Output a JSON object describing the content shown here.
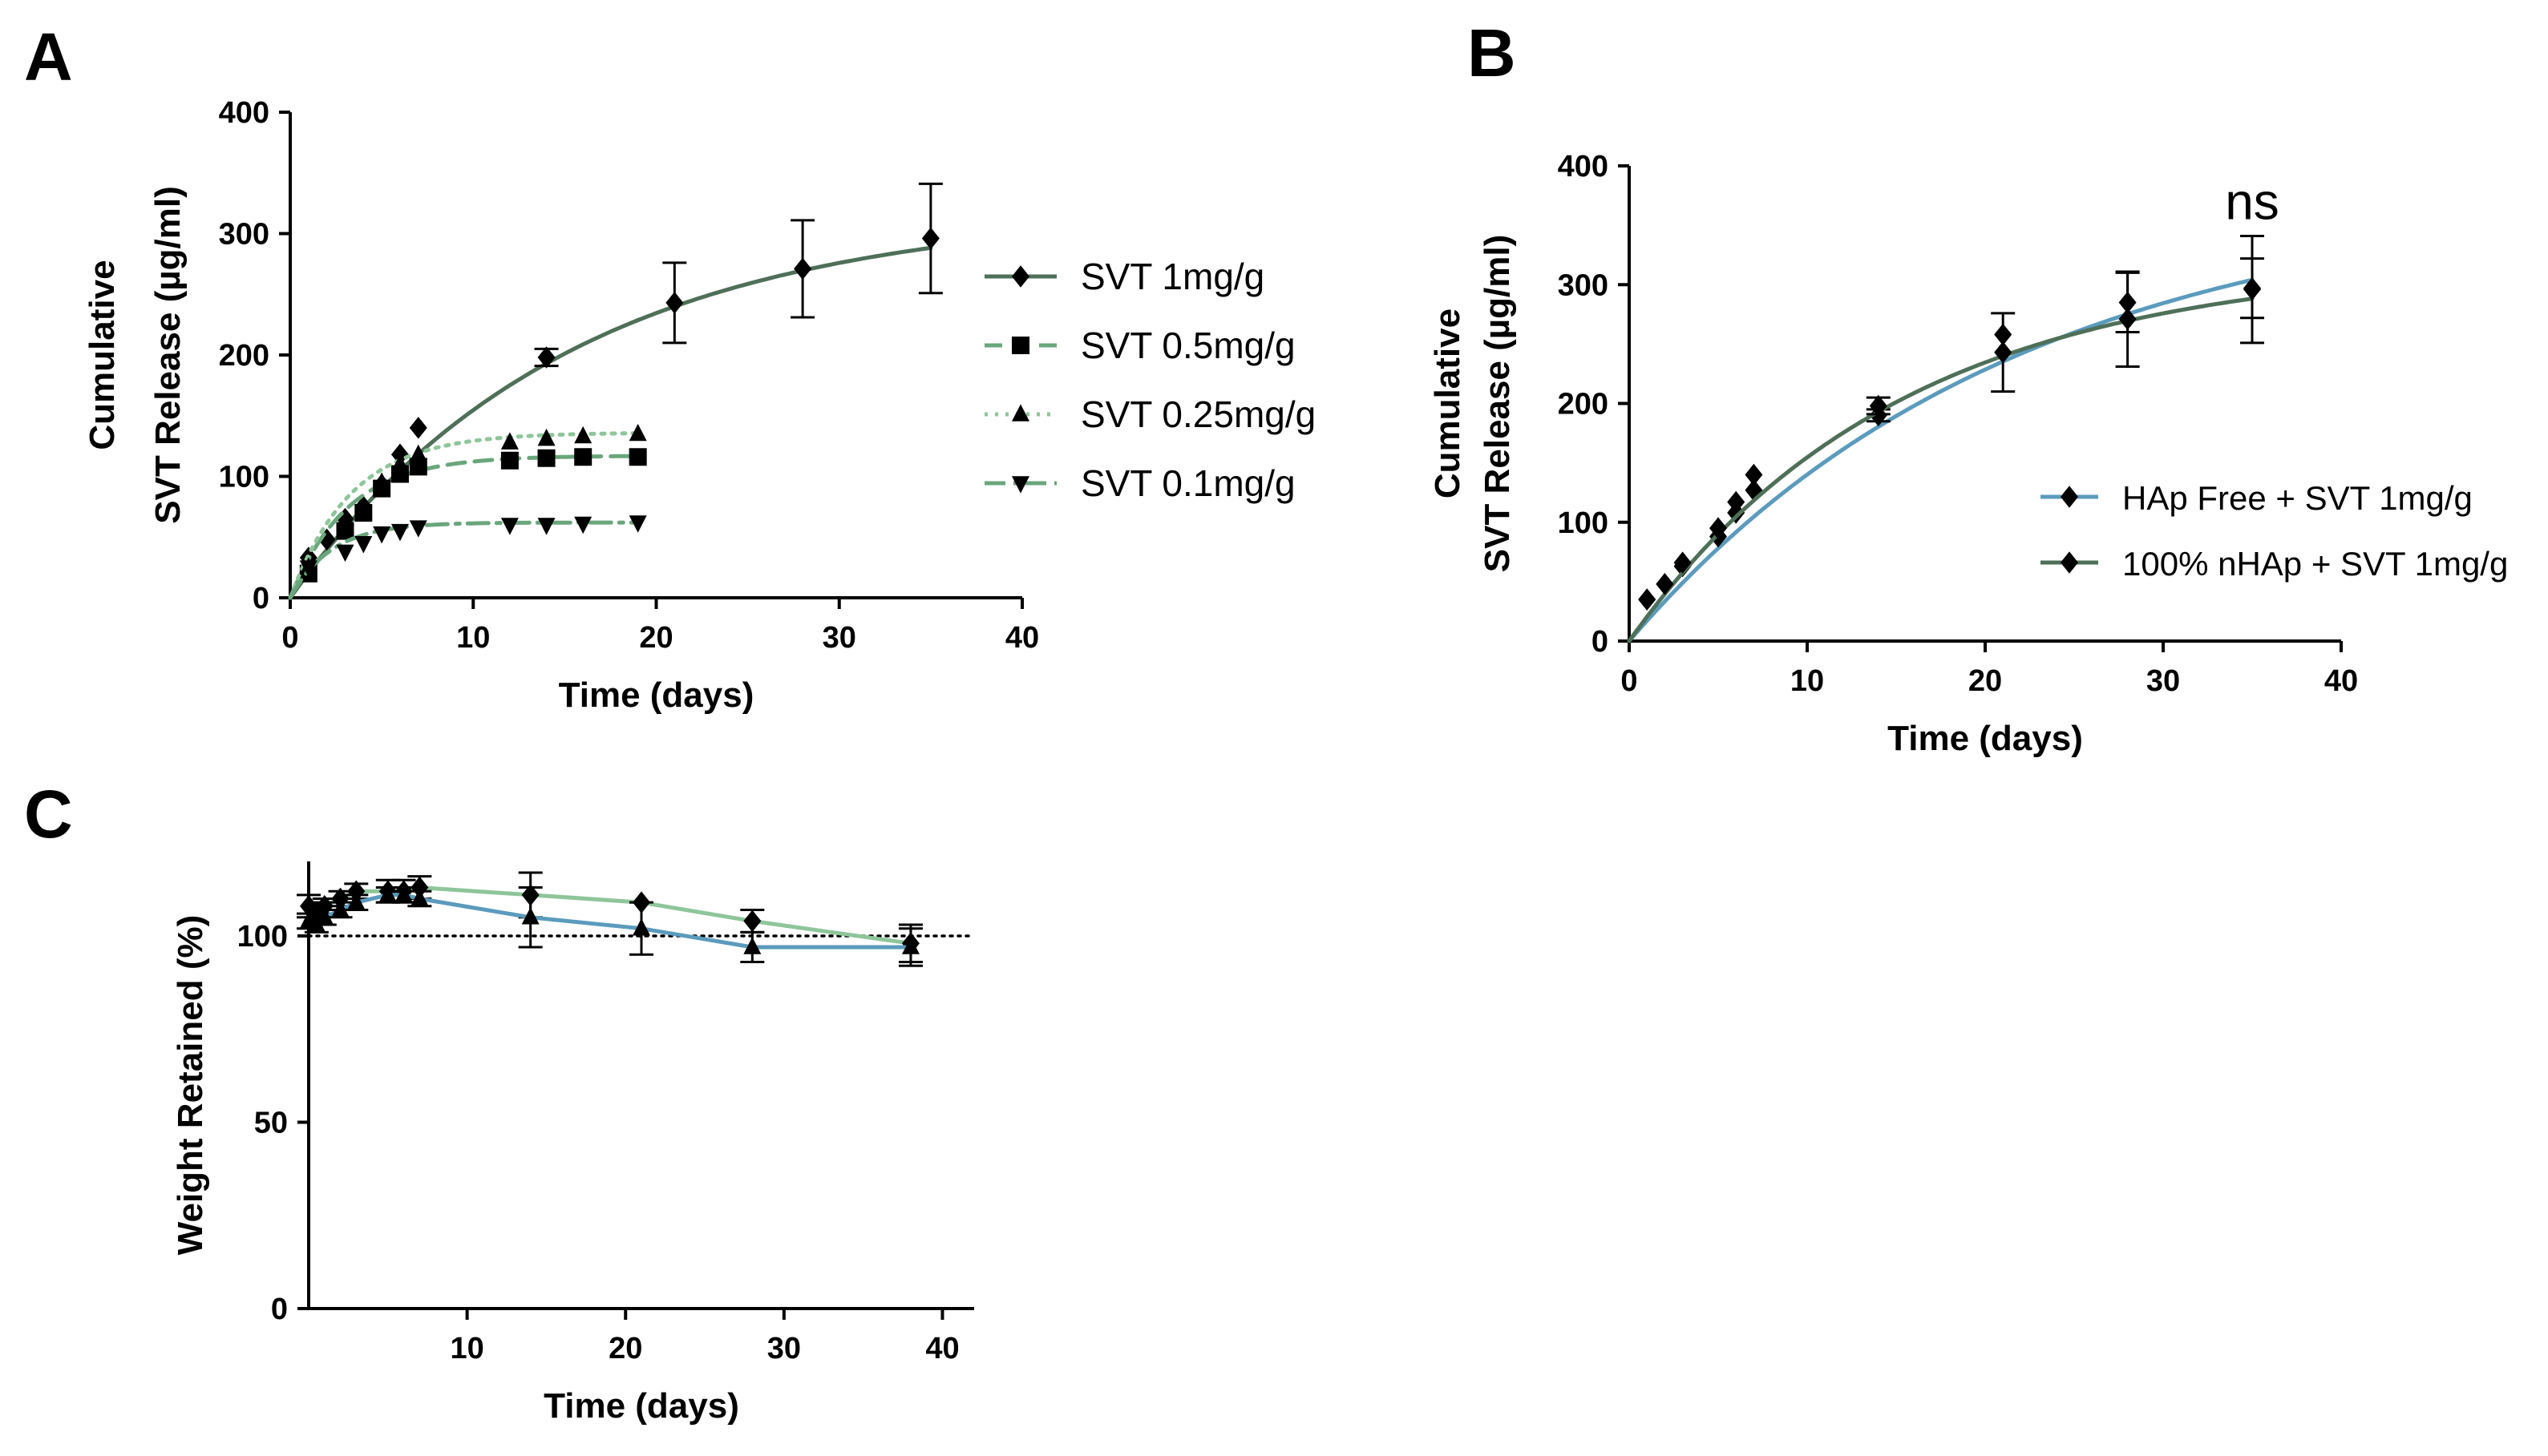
{
  "colors": {
    "dark_green": "#4e6f58",
    "mid_green": "#6aa67c",
    "light_green": "#8ec59a",
    "blue": "#5b9bbd",
    "black": "#000000"
  },
  "chart_data": [
    {
      "panel": "A",
      "type": "scatter",
      "xlabel": "Time (days)",
      "ylabel": [
        "Cumulative",
        "SVT Release (µg/ml)"
      ],
      "xlim": [
        0,
        40
      ],
      "ylim": [
        0,
        400
      ],
      "xticks": [
        "0",
        "10",
        "20",
        "30",
        "40"
      ],
      "yticks": [
        "0",
        "100",
        "200",
        "300",
        "400"
      ],
      "legend_position": "right",
      "series": [
        {
          "name": "SVT 1mg/g",
          "marker": "diamond",
          "line": "solid",
          "color": "#4e6f58",
          "x": [
            1,
            2,
            3,
            4,
            5,
            6,
            7,
            14,
            21,
            28,
            35
          ],
          "y": [
            33,
            48,
            65,
            75,
            93,
            118,
            140,
            198,
            243,
            271,
            296
          ],
          "err": [
            0,
            0,
            0,
            0,
            0,
            0,
            0,
            7,
            33,
            40,
            45
          ],
          "fit": {
            "plateau": 320,
            "k": 0.066
          }
        },
        {
          "name": "SVT 0.5mg/g",
          "marker": "square",
          "line": "dashed",
          "color": "#6aa67c",
          "x": [
            1,
            3,
            4,
            5,
            6,
            7,
            12,
            14,
            16,
            19
          ],
          "y": [
            20,
            55,
            70,
            90,
            102,
            108,
            113,
            115,
            116,
            116
          ],
          "err": [
            0,
            0,
            0,
            0,
            0,
            0,
            0,
            0,
            0,
            0
          ],
          "fit": {
            "plateau": 117,
            "k": 0.32
          }
        },
        {
          "name": "SVT 0.25mg/g",
          "marker": "triangle-up",
          "line": "dotted",
          "color": "#8ec59a",
          "x": [
            1,
            3,
            4,
            5,
            6,
            7,
            12,
            14,
            16,
            19
          ],
          "y": [
            25,
            60,
            75,
            95,
            110,
            118,
            128,
            131,
            133,
            135
          ],
          "err": [
            0,
            0,
            0,
            0,
            0,
            0,
            0,
            0,
            0,
            0
          ],
          "fit": {
            "plateau": 136,
            "k": 0.3
          }
        },
        {
          "name": "SVT 0.1mg/g",
          "marker": "triangle-down",
          "line": "dashdot",
          "color": "#6aa67c",
          "x": [
            1,
            3,
            4,
            5,
            6,
            7,
            12,
            14,
            16,
            19
          ],
          "y": [
            25,
            38,
            45,
            53,
            55,
            58,
            60,
            60,
            61,
            62
          ],
          "err": [
            0,
            0,
            0,
            0,
            0,
            0,
            0,
            0,
            0,
            0
          ],
          "fit": {
            "plateau": 62,
            "k": 0.45
          }
        }
      ]
    },
    {
      "panel": "B",
      "type": "scatter",
      "xlabel": "Time (days)",
      "ylabel": [
        "Cumulative",
        "SVT Release (µg/ml)"
      ],
      "xlim": [
        0,
        40
      ],
      "ylim": [
        0,
        400
      ],
      "xticks": [
        "0",
        "10",
        "20",
        "30",
        "40"
      ],
      "yticks": [
        "0",
        "100",
        "200",
        "300",
        "400"
      ],
      "annotation": "ns",
      "legend_position": "right",
      "series": [
        {
          "name": "HAp Free + SVT 1mg/g",
          "marker": "diamond",
          "line": "solid",
          "color": "#5b9bbd",
          "x": [
            1,
            2,
            3,
            5,
            6,
            7,
            14,
            21,
            28,
            35
          ],
          "y": [
            35,
            48,
            63,
            88,
            108,
            127,
            190,
            258,
            285,
            297
          ],
          "err": [
            0,
            0,
            0,
            0,
            0,
            0,
            5,
            0,
            25,
            25
          ],
          "fit": {
            "plateau": 380,
            "k": 0.046
          }
        },
        {
          "name": "100% nHAp + SVT 1mg/g",
          "marker": "diamond",
          "line": "solid",
          "color": "#4e6f58",
          "x": [
            1,
            2,
            3,
            5,
            6,
            7,
            14,
            21,
            28,
            35
          ],
          "y": [
            35,
            48,
            66,
            95,
            117,
            140,
            198,
            243,
            271,
            296
          ],
          "err": [
            0,
            0,
            0,
            0,
            0,
            0,
            7,
            33,
            40,
            45
          ],
          "fit": {
            "plateau": 320,
            "k": 0.066
          }
        }
      ]
    },
    {
      "panel": "C",
      "type": "line",
      "xlabel": "Time (days)",
      "ylabel": [
        "Weight Retained (%)"
      ],
      "xlim": [
        0,
        42
      ],
      "ylim": [
        0,
        120
      ],
      "xticks": [
        "10",
        "20",
        "30",
        "40"
      ],
      "yticks": [
        "0",
        "50",
        "100"
      ],
      "reference_line": 100,
      "series": [
        {
          "name": "green",
          "marker": "diamond",
          "color": "#8ec59a",
          "x": [
            0,
            0.5,
            1,
            2,
            3,
            5,
            6,
            7,
            14,
            21,
            28,
            38
          ],
          "y": [
            108,
            106,
            108,
            110,
            112,
            112,
            112,
            113,
            111,
            109,
            104,
            98
          ],
          "err": [
            3,
            3,
            2,
            2,
            2,
            3,
            3,
            3,
            6,
            0,
            3,
            5
          ]
        },
        {
          "name": "blue",
          "marker": "triangle-up",
          "color": "#5b9bbd",
          "x": [
            0,
            0.5,
            1,
            2,
            3,
            5,
            6,
            7,
            14,
            21,
            28,
            38
          ],
          "y": [
            104,
            103,
            105,
            107,
            109,
            111,
            111,
            110,
            105,
            102,
            97,
            97
          ],
          "err": [
            2,
            2,
            2,
            2,
            2,
            2,
            2,
            2,
            8,
            7,
            4,
            5
          ]
        }
      ]
    }
  ]
}
